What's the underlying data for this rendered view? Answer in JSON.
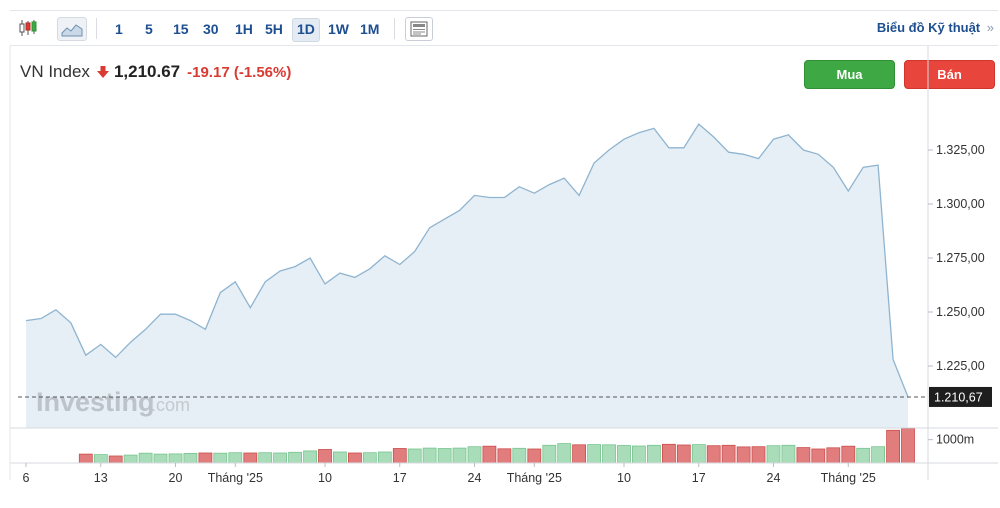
{
  "toolbar": {
    "timeframes": [
      "1",
      "5",
      "15",
      "30",
      "1H",
      "5H",
      "1D",
      "1W",
      "1M"
    ],
    "active_timeframe": "1D",
    "technical_link": "Biểu đồ Kỹ thuật",
    "technical_link_arrow": "»",
    "icons": [
      "candlestick-icon",
      "area-chart-icon",
      "news-icon"
    ]
  },
  "quote": {
    "name": "VN Index",
    "price": "1,210.67",
    "change": "-19.17",
    "change_pct": "(-1.56%)",
    "change_color": "#d93b32",
    "direction": "down"
  },
  "buttons": {
    "buy": "Mua",
    "sell": "Bán"
  },
  "watermark": {
    "main": "Investing",
    "suffix": ".com"
  },
  "chart_data": {
    "type": "area",
    "y_ticks": [
      "1.325,00",
      "1.300,00",
      "1.275,00",
      "1.250,00",
      "1.225,00"
    ],
    "y_tick_values": [
      1325,
      1300,
      1275,
      1250,
      1225
    ],
    "ylim": [
      1205,
      1345
    ],
    "last_value": 1210.67,
    "last_value_label": "1.210,67",
    "x_tick_labels": [
      "6",
      "13",
      "20",
      "Tháng '25",
      "10",
      "17",
      "24",
      "Tháng '25",
      "10",
      "17",
      "24",
      "Tháng '25"
    ],
    "x_tick_index": [
      0,
      5,
      10,
      14,
      20,
      25,
      30,
      34,
      40,
      45,
      50,
      55
    ],
    "values": [
      1246,
      1247,
      1251,
      1245,
      1230,
      1235,
      1229,
      1236,
      1242,
      1249,
      1249,
      1246,
      1242,
      1259,
      1264,
      1252,
      1264,
      1269,
      1271,
      1275,
      1263,
      1268,
      1266,
      1270,
      1276,
      1272,
      1278,
      1289,
      1293,
      1297,
      1304,
      1303,
      1303,
      1308,
      1305,
      1309,
      1312,
      1304,
      1319,
      1325,
      1330,
      1333,
      1335,
      1326,
      1326,
      1337,
      1331,
      1324,
      1323,
      1321,
      1330,
      1332,
      1325,
      1323,
      1317,
      1306,
      1317,
      1318,
      1228,
      1210.67
    ],
    "volume_label": "1000m",
    "volume_ref": 1000,
    "volume_max": 1500,
    "volume": [
      {
        "i": 4,
        "v": 380,
        "d": "down"
      },
      {
        "i": 5,
        "v": 360,
        "d": "up"
      },
      {
        "i": 6,
        "v": 300,
        "d": "down"
      },
      {
        "i": 7,
        "v": 340,
        "d": "up"
      },
      {
        "i": 8,
        "v": 420,
        "d": "up"
      },
      {
        "i": 9,
        "v": 380,
        "d": "up"
      },
      {
        "i": 10,
        "v": 390,
        "d": "up"
      },
      {
        "i": 11,
        "v": 410,
        "d": "up"
      },
      {
        "i": 12,
        "v": 430,
        "d": "down"
      },
      {
        "i": 13,
        "v": 420,
        "d": "up"
      },
      {
        "i": 14,
        "v": 440,
        "d": "up"
      },
      {
        "i": 15,
        "v": 430,
        "d": "down"
      },
      {
        "i": 16,
        "v": 440,
        "d": "up"
      },
      {
        "i": 17,
        "v": 430,
        "d": "up"
      },
      {
        "i": 18,
        "v": 460,
        "d": "up"
      },
      {
        "i": 19,
        "v": 520,
        "d": "up"
      },
      {
        "i": 20,
        "v": 580,
        "d": "down"
      },
      {
        "i": 21,
        "v": 470,
        "d": "up"
      },
      {
        "i": 22,
        "v": 430,
        "d": "down"
      },
      {
        "i": 23,
        "v": 440,
        "d": "up"
      },
      {
        "i": 24,
        "v": 470,
        "d": "up"
      },
      {
        "i": 25,
        "v": 620,
        "d": "down"
      },
      {
        "i": 26,
        "v": 600,
        "d": "up"
      },
      {
        "i": 27,
        "v": 640,
        "d": "up"
      },
      {
        "i": 28,
        "v": 620,
        "d": "up"
      },
      {
        "i": 29,
        "v": 640,
        "d": "up"
      },
      {
        "i": 30,
        "v": 700,
        "d": "up"
      },
      {
        "i": 31,
        "v": 720,
        "d": "down"
      },
      {
        "i": 32,
        "v": 610,
        "d": "down"
      },
      {
        "i": 33,
        "v": 630,
        "d": "up"
      },
      {
        "i": 34,
        "v": 600,
        "d": "down"
      },
      {
        "i": 35,
        "v": 760,
        "d": "up"
      },
      {
        "i": 36,
        "v": 830,
        "d": "up"
      },
      {
        "i": 37,
        "v": 780,
        "d": "down"
      },
      {
        "i": 38,
        "v": 790,
        "d": "up"
      },
      {
        "i": 39,
        "v": 780,
        "d": "up"
      },
      {
        "i": 40,
        "v": 750,
        "d": "up"
      },
      {
        "i": 41,
        "v": 730,
        "d": "up"
      },
      {
        "i": 42,
        "v": 760,
        "d": "up"
      },
      {
        "i": 43,
        "v": 800,
        "d": "down"
      },
      {
        "i": 44,
        "v": 770,
        "d": "down"
      },
      {
        "i": 45,
        "v": 790,
        "d": "up"
      },
      {
        "i": 46,
        "v": 740,
        "d": "down"
      },
      {
        "i": 47,
        "v": 760,
        "d": "down"
      },
      {
        "i": 48,
        "v": 690,
        "d": "down"
      },
      {
        "i": 49,
        "v": 700,
        "d": "down"
      },
      {
        "i": 50,
        "v": 740,
        "d": "up"
      },
      {
        "i": 51,
        "v": 760,
        "d": "up"
      },
      {
        "i": 52,
        "v": 660,
        "d": "down"
      },
      {
        "i": 53,
        "v": 600,
        "d": "down"
      },
      {
        "i": 54,
        "v": 650,
        "d": "down"
      },
      {
        "i": 55,
        "v": 720,
        "d": "down"
      },
      {
        "i": 56,
        "v": 630,
        "d": "up"
      },
      {
        "i": 57,
        "v": 700,
        "d": "up"
      },
      {
        "i": 58,
        "v": 1400,
        "d": "down"
      },
      {
        "i": 59,
        "v": 1480,
        "d": "down"
      }
    ],
    "colors": {
      "line": "#8fb4cf",
      "area": "#e6eff6",
      "vol_up": "#a9dcb9",
      "vol_up_edge": "#77c48f",
      "vol_down": "#e27d7d",
      "vol_down_edge": "#cc4d4d",
      "axis_text": "#333333",
      "last_label_bg": "#1e1e1e"
    }
  }
}
